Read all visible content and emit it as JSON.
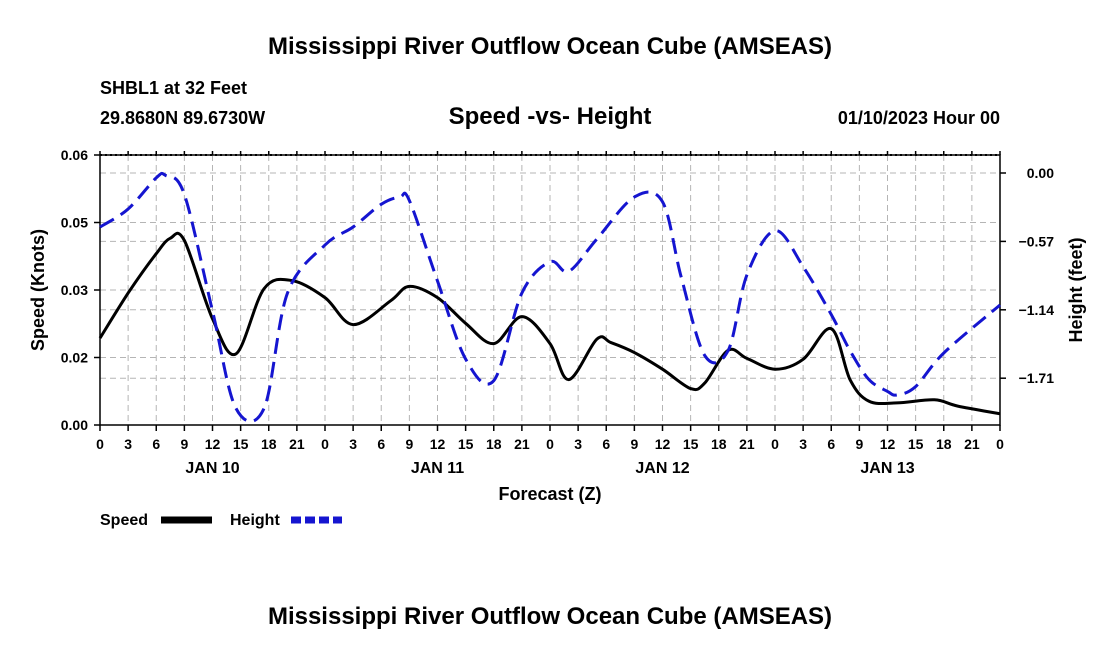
{
  "title": "Mississippi River Outflow Ocean Cube (AMSEAS)",
  "station": "SHBL1 at 32 Feet",
  "coords": "29.8680N  89.6730W",
  "date_label": "01/10/2023 Hour 00",
  "footer_title": "Mississippi River Outflow Ocean Cube (AMSEAS)",
  "chart_data": {
    "type": "line",
    "title": "Speed -vs- Height",
    "xlabel": "Forecast (Z)",
    "ylabel_left": "Speed (Knots)",
    "ylabel_right": "Height (feet)",
    "ylim_left": [
      0,
      0.06
    ],
    "ylim_right": [
      -2.1,
      0.15
    ],
    "xlim_hours": [
      0,
      96
    ],
    "left_ticks": [
      "0.00",
      "0.02",
      "0.03",
      "0.05",
      "0.06"
    ],
    "left_tick_values": [
      0.0,
      0.015,
      0.03,
      0.045,
      0.06
    ],
    "right_ticks": [
      "0.00",
      "−0.57",
      "−1.14",
      "−1.71"
    ],
    "right_tick_values": [
      0.0,
      -0.57,
      -1.14,
      -1.71
    ],
    "hour_tick_labels": [
      "0",
      "3",
      "6",
      "9",
      "12",
      "15",
      "18",
      "21",
      "0",
      "3",
      "6",
      "9",
      "12",
      "15",
      "18",
      "21",
      "0",
      "3",
      "6",
      "9",
      "12",
      "15",
      "18",
      "21",
      "0",
      "3",
      "6",
      "9",
      "12",
      "15",
      "18",
      "21",
      "0"
    ],
    "day_labels": [
      {
        "label": "JAN 10",
        "hour": 12
      },
      {
        "label": "JAN 11",
        "hour": 36
      },
      {
        "label": "JAN 12",
        "hour": 60
      },
      {
        "label": "JAN 13",
        "hour": 84
      }
    ],
    "legend": [
      {
        "label": "Speed",
        "color": "#000000",
        "style": "solid"
      },
      {
        "label": "Height",
        "color": "#1515d0",
        "style": "dashed"
      }
    ],
    "series": [
      {
        "name": "Speed",
        "axis": "left",
        "color": "#000000",
        "x": [
          0,
          3,
          6,
          7.5,
          9,
          12,
          14.5,
          17.5,
          20.5,
          24,
          27,
          31,
          33,
          36,
          39,
          42,
          45,
          48,
          50,
          53,
          54.5,
          57,
          60,
          63,
          64.5,
          67,
          69,
          72,
          75,
          78,
          80,
          82,
          85,
          89,
          91.5,
          96
        ],
        "values": [
          0.0193,
          0.0293,
          0.0381,
          0.0415,
          0.041,
          0.0236,
          0.0158,
          0.0303,
          0.0321,
          0.0283,
          0.0223,
          0.0276,
          0.0308,
          0.0283,
          0.0226,
          0.0181,
          0.0241,
          0.0181,
          0.0101,
          0.0191,
          0.0183,
          0.0161,
          0.0124,
          0.0081,
          0.0093,
          0.0166,
          0.0148,
          0.0124,
          0.0146,
          0.0214,
          0.0101,
          0.0053,
          0.0049,
          0.0056,
          0.0042,
          0.0025
        ]
      },
      {
        "name": "Height",
        "axis": "right",
        "color": "#1515d0",
        "x": [
          0,
          3,
          6,
          7,
          9,
          12,
          14.5,
          17.5,
          20,
          24,
          27,
          30,
          32,
          33,
          36,
          39,
          42,
          45,
          48,
          50,
          53,
          57,
          60,
          62,
          64.5,
          67,
          69,
          72,
          75,
          78,
          80,
          82,
          84,
          85,
          87,
          90,
          96
        ],
        "values": [
          -0.45,
          -0.3,
          -0.04,
          -0.02,
          -0.18,
          -1.15,
          -1.96,
          -1.96,
          -1.0,
          -0.6,
          -0.45,
          -0.26,
          -0.2,
          -0.23,
          -0.9,
          -1.55,
          -1.73,
          -1.0,
          -0.74,
          -0.82,
          -0.55,
          -0.2,
          -0.24,
          -0.87,
          -1.52,
          -1.48,
          -0.85,
          -0.48,
          -0.78,
          -1.18,
          -1.48,
          -1.72,
          -1.82,
          -1.85,
          -1.78,
          -1.5,
          -1.1
        ]
      }
    ]
  }
}
